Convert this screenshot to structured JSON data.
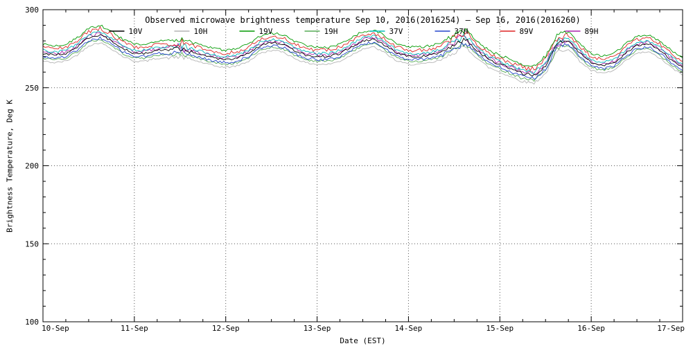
{
  "figure": {
    "title": "Observed microwave brightness temperature Sep 10, 2016(2016254) — Sep 16, 2016(2016260)",
    "xlabel": "Date (EST)",
    "ylabel": "Brightness Temperature, Deg K",
    "background": "#ffffff",
    "axis_color": "#000000",
    "grid_color": "#555555"
  },
  "chart_data": {
    "type": "line",
    "title": "Observed microwave brightness temperature Sep 10, 2016(2016254) — Sep 16, 2016(2016260)",
    "xlabel": "Date (EST)",
    "ylabel": "Brightness Temperature, Deg K",
    "grid": true,
    "legend_position": "top-inside",
    "ylim": [
      100,
      300
    ],
    "y_ticks": [
      100,
      150,
      200,
      250,
      300
    ],
    "x_range_days": [
      0,
      7
    ],
    "x_tick_labels": [
      "10-Sep",
      "11-Sep",
      "12-Sep",
      "13-Sep",
      "14-Sep",
      "15-Sep",
      "16-Sep",
      "17-Sep"
    ],
    "y_minor_step": 10,
    "x_minor_step": 0.25,
    "noise_amp": 0.7,
    "noise_envelope": [
      [
        0,
        1
      ],
      [
        1.35,
        1
      ],
      [
        1.5,
        3
      ],
      [
        1.65,
        1
      ],
      [
        4.35,
        1
      ],
      [
        4.55,
        3.2
      ],
      [
        4.7,
        1
      ],
      [
        5.5,
        1.5
      ],
      [
        5.62,
        3
      ],
      [
        5.75,
        1
      ],
      [
        7,
        1
      ]
    ],
    "draw_order": [
      1,
      3,
      5,
      7,
      4,
      6,
      2,
      0
    ],
    "x": [
      0,
      0.125,
      0.25,
      0.375,
      0.5,
      0.625,
      0.75,
      0.875,
      1,
      1.125,
      1.25,
      1.375,
      1.5,
      1.625,
      1.75,
      1.875,
      2,
      2.125,
      2.25,
      2.375,
      2.5,
      2.625,
      2.75,
      2.875,
      3,
      3.125,
      3.25,
      3.375,
      3.5,
      3.625,
      3.75,
      3.875,
      4,
      4.125,
      4.25,
      4.375,
      4.5,
      4.625,
      4.75,
      4.875,
      5,
      5.125,
      5.25,
      5.375,
      5.5,
      5.625,
      5.75,
      5.875,
      6,
      6.125,
      6.25,
      6.375,
      6.5,
      6.625,
      6.75,
      6.875,
      7
    ],
    "series": [
      {
        "name": "10V",
        "color": "#000000",
        "noise_scale": 1.0,
        "values": [
          272,
          271,
          272,
          276,
          282,
          284,
          280,
          275,
          272,
          272,
          274,
          274,
          275,
          273,
          271,
          269,
          268,
          269,
          272,
          277,
          279,
          278,
          274,
          271,
          270,
          270,
          272,
          276,
          280,
          281,
          277,
          272,
          270,
          270,
          271,
          273,
          278,
          281,
          274,
          268,
          265,
          262,
          259,
          258,
          264,
          278,
          280,
          272,
          266,
          264,
          266,
          272,
          277,
          278,
          274,
          268,
          263
        ]
      },
      {
        "name": "10H",
        "color": "#b3b3b3",
        "noise_scale": 0.9,
        "values": [
          267,
          266,
          267,
          271,
          277,
          279,
          275,
          270,
          267,
          267,
          269,
          269,
          270,
          268,
          266,
          264,
          263,
          264,
          267,
          272,
          274,
          273,
          269,
          266,
          265,
          265,
          267,
          271,
          275,
          276,
          272,
          267,
          265,
          265,
          266,
          268,
          273,
          276,
          269,
          263,
          260,
          257,
          254,
          253,
          259,
          273,
          275,
          267,
          261,
          259,
          261,
          267,
          272,
          273,
          269,
          263,
          258
        ]
      },
      {
        "name": "19V",
        "color": "#009900",
        "noise_scale": 1.1,
        "values": [
          278,
          277,
          278,
          282,
          288,
          290,
          286,
          281,
          278,
          278,
          280,
          280,
          281,
          279,
          277,
          275,
          274,
          275,
          278,
          283,
          285,
          284,
          280,
          277,
          276,
          276,
          278,
          282,
          286,
          287,
          283,
          278,
          276,
          276,
          277,
          279,
          284,
          287,
          280,
          274,
          271,
          268,
          265,
          264,
          270,
          284,
          286,
          278,
          272,
          270,
          272,
          278,
          283,
          284,
          280,
          274,
          269
        ]
      },
      {
        "name": "19H",
        "color": "#55aa55",
        "noise_scale": 1.0,
        "values": [
          269,
          268,
          269,
          273,
          279,
          281,
          277,
          272,
          269,
          269,
          271,
          271,
          272,
          270,
          268,
          266,
          265,
          266,
          269,
          274,
          276,
          275,
          271,
          268,
          267,
          267,
          269,
          273,
          277,
          278,
          274,
          269,
          267,
          267,
          268,
          270,
          275,
          278,
          271,
          265,
          262,
          259,
          256,
          255,
          261,
          275,
          277,
          269,
          263,
          261,
          263,
          269,
          274,
          275,
          271,
          265,
          260
        ]
      },
      {
        "name": "37V",
        "color": "#00bbbb",
        "noise_scale": 1.2,
        "values": [
          274,
          273,
          274,
          278,
          284,
          286,
          282,
          277,
          274,
          274,
          276,
          276,
          277,
          275,
          273,
          271,
          270,
          271,
          274,
          279,
          281,
          280,
          276,
          273,
          272,
          272,
          274,
          278,
          282,
          283,
          279,
          274,
          272,
          272,
          273,
          275,
          280,
          283,
          276,
          270,
          267,
          264,
          261,
          260,
          266,
          280,
          282,
          274,
          268,
          266,
          268,
          274,
          279,
          280,
          276,
          270,
          265
        ]
      },
      {
        "name": "37H",
        "color": "#2244cc",
        "noise_scale": 1.2,
        "values": [
          270,
          269,
          270,
          274,
          280,
          282,
          278,
          273,
          270,
          270,
          272,
          272,
          273,
          271,
          269,
          267,
          266,
          267,
          270,
          275,
          277,
          276,
          272,
          269,
          268,
          268,
          270,
          274,
          278,
          279,
          275,
          270,
          268,
          268,
          269,
          271,
          276,
          279,
          272,
          266,
          263,
          260,
          257,
          256,
          262,
          276,
          278,
          270,
          264,
          262,
          264,
          270,
          275,
          276,
          272,
          266,
          261
        ]
      },
      {
        "name": "89V",
        "color": "#dd2222",
        "noise_scale": 1.6,
        "values": [
          276,
          275,
          276,
          280,
          286,
          288,
          284,
          279,
          276,
          276,
          278,
          278,
          279,
          277,
          275,
          273,
          272,
          273,
          276,
          281,
          283,
          282,
          278,
          275,
          274,
          274,
          276,
          280,
          284,
          285,
          281,
          276,
          274,
          274,
          275,
          277,
          282,
          285,
          278,
          272,
          269,
          266,
          263,
          262,
          268,
          282,
          284,
          276,
          270,
          268,
          270,
          276,
          281,
          282,
          278,
          272,
          267
        ]
      },
      {
        "name": "89H",
        "color": "#aa22aa",
        "noise_scale": 1.6,
        "values": [
          273,
          272,
          273,
          277,
          283,
          285,
          281,
          276,
          273,
          273,
          275,
          275,
          276,
          274,
          272,
          270,
          269,
          270,
          273,
          278,
          280,
          279,
          275,
          272,
          271,
          271,
          273,
          277,
          281,
          282,
          278,
          273,
          271,
          271,
          272,
          274,
          279,
          282,
          275,
          269,
          266,
          263,
          260,
          259,
          265,
          279,
          281,
          273,
          267,
          265,
          267,
          273,
          278,
          279,
          275,
          269,
          264
        ]
      }
    ]
  }
}
